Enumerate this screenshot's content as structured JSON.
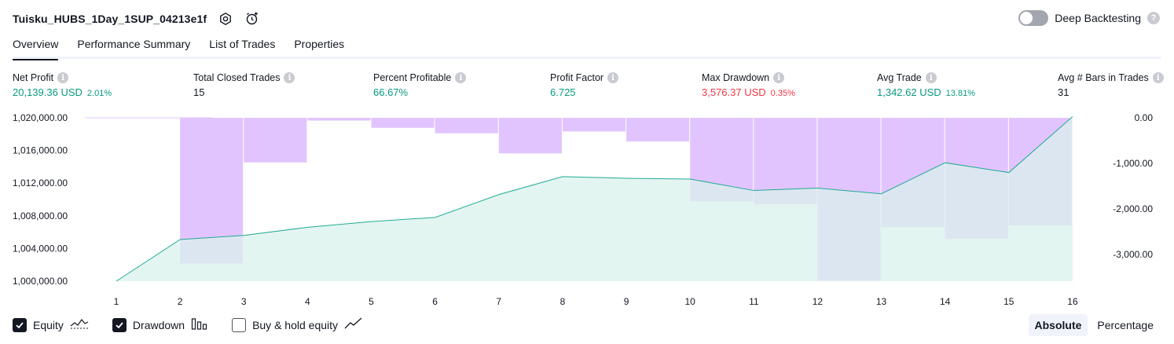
{
  "header": {
    "title": "Tuisku_HUBS_1Day_1SUP_04213e1f",
    "settings_icon": "gear-icon",
    "alert_icon": "alarm-clock-add-icon"
  },
  "deep_backtesting": {
    "label": "Deep Backtesting",
    "enabled": false,
    "help_icon": "question-icon",
    "help_glyph": "?"
  },
  "tabs": [
    {
      "label": "Overview",
      "active": true
    },
    {
      "label": "Performance Summary",
      "active": false
    },
    {
      "label": "List of Trades",
      "active": false
    },
    {
      "label": "Properties",
      "active": false
    }
  ],
  "info_glyph": "i",
  "metrics": [
    {
      "label": "Net Profit",
      "value": "20,139.36 USD",
      "pct": "2.01%",
      "tone": "pos"
    },
    {
      "label": "Total Closed Trades",
      "value": "15",
      "pct": "",
      "tone": "neutral"
    },
    {
      "label": "Percent Profitable",
      "value": "66.67%",
      "pct": "",
      "tone": "pos"
    },
    {
      "label": "Profit Factor",
      "value": "6.725",
      "pct": "",
      "tone": "pos"
    },
    {
      "label": "Max Drawdown",
      "value": "3,576.37 USD",
      "pct": "0.35%",
      "tone": "neg"
    },
    {
      "label": "Avg Trade",
      "value": "1,342.62 USD",
      "pct": "13.81%",
      "tone": "pos"
    },
    {
      "label": "Avg # Bars in Trades",
      "value": "31",
      "pct": "",
      "tone": "neutral"
    }
  ],
  "chart_data": {
    "type": "line",
    "x": [
      1,
      2,
      3,
      4,
      5,
      6,
      7,
      8,
      9,
      10,
      11,
      12,
      13,
      14,
      15,
      16
    ],
    "left_ticks": [
      "1,020,000.00",
      "1,016,000.00",
      "1,012,000.00",
      "1,008,000.00",
      "1,004,000.00",
      "1,000,000.00"
    ],
    "right_ticks": [
      "0.00",
      "-1,000.00",
      "-2,000.00",
      "-3,000.00"
    ],
    "left_ylim": [
      1000000,
      1020000
    ],
    "right_ylim": [
      -3576.37,
      0
    ],
    "series": [
      {
        "kind": "equity-area",
        "axis": "left",
        "color": "#22ab94",
        "fill": "#d9f2ec",
        "values": [
          1000000,
          1005100,
          1005600,
          1006600,
          1007300,
          1007800,
          1010600,
          1012800,
          1012600,
          1012500,
          1011100,
          1011400,
          1010700,
          1014500,
          1013300,
          1020139
        ]
      },
      {
        "kind": "drawdown-bars",
        "axis": "right",
        "color": "#e1c4fd",
        "values": [
          -8,
          0,
          -3200,
          -980,
          -60,
          -220,
          -340,
          -780,
          -300,
          -520,
          -1830,
          -1900,
          -3576.37,
          -2400,
          -2660,
          -2360
        ]
      }
    ],
    "grid": false,
    "legend": "bottom-left"
  },
  "legend": {
    "items": [
      {
        "label": "Equity",
        "checked": true,
        "icon": "equity-line-icon"
      },
      {
        "label": "Drawdown",
        "checked": true,
        "icon": "bar-chart-icon"
      },
      {
        "label": "Buy & hold equity",
        "checked": false,
        "icon": "line-trend-icon"
      }
    ]
  },
  "view_mode": {
    "options": [
      "Absolute",
      "Percentage"
    ],
    "active": "Absolute"
  }
}
